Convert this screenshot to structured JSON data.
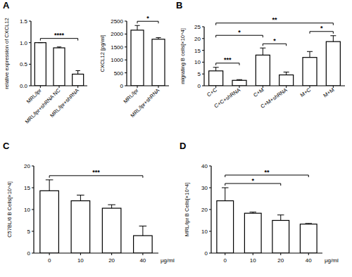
{
  "panel_labels": [
    "A",
    "B",
    "C",
    "D"
  ],
  "chart_data": [
    {
      "type": "bar",
      "color": "#ffffff",
      "ylabel": "relative expression of CXCL12",
      "categories": [
        "MRL/lpr",
        "MRL/lpr+shRNA NC",
        "MRL/lpr+shRNA"
      ],
      "values": [
        1.0,
        0.88,
        0.27
      ],
      "errors": [
        0,
        0.02,
        0.08
      ],
      "ylim": [
        0,
        1.5
      ],
      "yticks": [
        {
          "value": 0,
          "label": "0.0"
        },
        0.5,
        {
          "value": 1,
          "label": "1.0"
        },
        1.5
      ],
      "annotations": [
        {
          "text": "****",
          "from": 0,
          "to": 2
        }
      ]
    },
    {
      "type": "bar",
      "color": "#ffffff",
      "ylabel": "CXCL12 [pg/ml]",
      "categories": [
        "MRL/lpr",
        "MRL/lpr+shRNA"
      ],
      "values": [
        2150,
        1800
      ],
      "errors": [
        180,
        60
      ],
      "ylim": [
        0,
        2500
      ],
      "yticks": [
        0,
        500,
        1000,
        1500,
        2000,
        2500
      ],
      "annotations": [
        {
          "text": "*",
          "from": 0,
          "to": 1
        }
      ]
    },
    {
      "type": "bar",
      "color": "#ffffff",
      "ylabel": "migrating B cells[×10^4]",
      "categories": [
        "C+C",
        "C+C+shRNA",
        "C+M",
        "C+M+shRNA",
        "M+C",
        "M+M"
      ],
      "values": [
        6.3,
        2.3,
        13,
        4.6,
        12,
        18.7
      ],
      "errors": [
        1.5,
        0.3,
        3,
        1.2,
        2.5,
        2.5
      ],
      "ylim": [
        0,
        25
      ],
      "yticks": [
        0,
        5,
        10,
        15,
        20,
        25
      ],
      "annotations": [
        {
          "text": "***",
          "from": 0,
          "to": 1
        },
        {
          "text": "*",
          "from": 2,
          "to": 3
        },
        {
          "text": "*",
          "from": 4,
          "to": 5
        },
        {
          "text": "*",
          "from": 0,
          "to": 2
        },
        {
          "text": "**",
          "from": 0,
          "to": 5
        }
      ]
    },
    {
      "type": "bar",
      "color": "#ffffff",
      "ylabel": "C57BL/6 B Cells[×10^4]",
      "xlabel": "μg/ml",
      "categories": [
        "0",
        "10",
        "20",
        "40"
      ],
      "values": [
        14.3,
        12,
        10.3,
        4
      ],
      "errors": [
        2.5,
        1.3,
        0.8,
        2.2
      ],
      "ylim": [
        0,
        20
      ],
      "yticks": [
        0,
        5,
        10,
        15,
        20
      ],
      "annotations": [
        {
          "text": "***",
          "from": 0,
          "to": 3
        }
      ]
    },
    {
      "type": "bar",
      "color": "#ffffff",
      "ylabel": "MRL/lpr B Cells[×10^4]",
      "xlabel": "μg/ml",
      "categories": [
        "0",
        "10",
        "20",
        "40"
      ],
      "values": [
        24,
        18.3,
        15,
        13.3
      ],
      "errors": [
        6,
        0.5,
        2.5,
        0.3
      ],
      "ylim": [
        0,
        40
      ],
      "yticks": [
        0,
        10,
        20,
        30,
        40
      ],
      "annotations": [
        {
          "text": "*",
          "from": 0,
          "to": 2
        },
        {
          "text": "**",
          "from": 0,
          "to": 3
        }
      ]
    }
  ]
}
